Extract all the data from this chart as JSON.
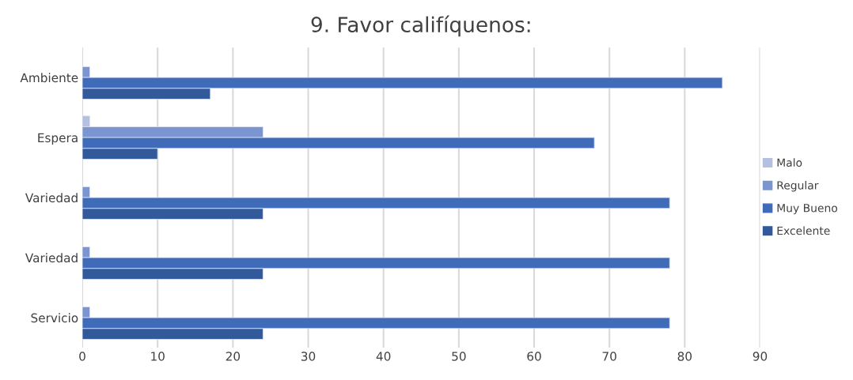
{
  "chart_data": {
    "type": "bar",
    "orientation": "horizontal",
    "title": "9. Favor califíquenos:",
    "categories": [
      "Ambiente",
      "Espera",
      "Variedad",
      "Variedad",
      "Servicio"
    ],
    "series": [
      {
        "name": "Malo",
        "color": "#b4c0e0",
        "values": [
          null,
          1,
          null,
          null,
          null
        ]
      },
      {
        "name": "Regular",
        "color": "#7a95d0",
        "values": [
          1,
          24,
          1,
          1,
          1
        ]
      },
      {
        "name": "Muy Bueno",
        "color": "#3f6bb8",
        "values": [
          85,
          68,
          78,
          78,
          78
        ]
      },
      {
        "name": "Excelente",
        "color": "#325a9a",
        "values": [
          17,
          10,
          24,
          24,
          24
        ]
      }
    ],
    "xlim": [
      0,
      90
    ],
    "xticks": [
      0,
      10,
      20,
      30,
      40,
      50,
      60,
      70,
      80,
      90
    ],
    "grid": "x",
    "legend": "right"
  }
}
